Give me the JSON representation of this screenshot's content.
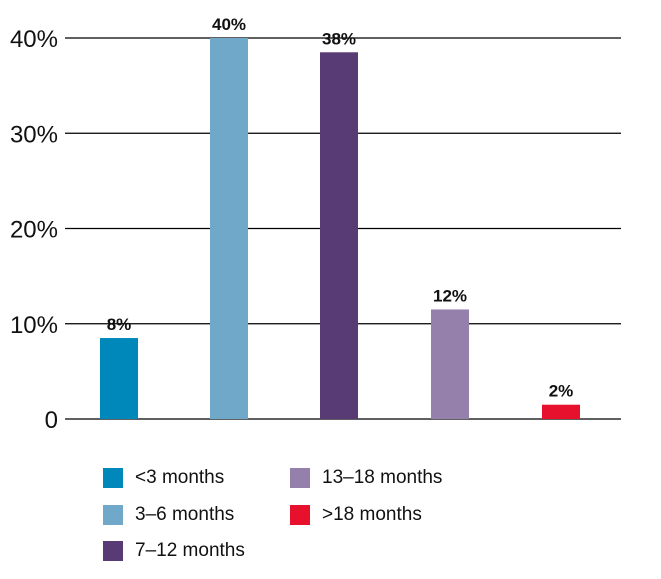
{
  "chart_data": {
    "type": "bar",
    "categories": [
      "<3 months",
      "3–6 months",
      "7–12 months",
      "13–18 months",
      ">18 months"
    ],
    "values": [
      8.5,
      40,
      38.5,
      11.5,
      1.5
    ],
    "data_labels": [
      "8%",
      "40%",
      "38%",
      "12%",
      "2%"
    ],
    "colors": [
      "#0088bb",
      "#6fa8c8",
      "#583a75",
      "#9480aa",
      "#e8112d"
    ],
    "ylim": [
      0,
      40
    ],
    "yticks": [
      0,
      10,
      20,
      30,
      40
    ],
    "ytick_labels": [
      "0",
      "10%",
      "20%",
      "30%",
      "40%"
    ],
    "grid": true,
    "legend_position": "bottom"
  },
  "legend": {
    "items": [
      {
        "label": "<3 months",
        "color": "#0088bb"
      },
      {
        "label": "3–6 months",
        "color": "#6fa8c8"
      },
      {
        "label": "7–12 months",
        "color": "#583a75"
      },
      {
        "label": "13–18 months",
        "color": "#9480aa"
      },
      {
        "label": ">18 months",
        "color": "#e8112d"
      }
    ]
  }
}
